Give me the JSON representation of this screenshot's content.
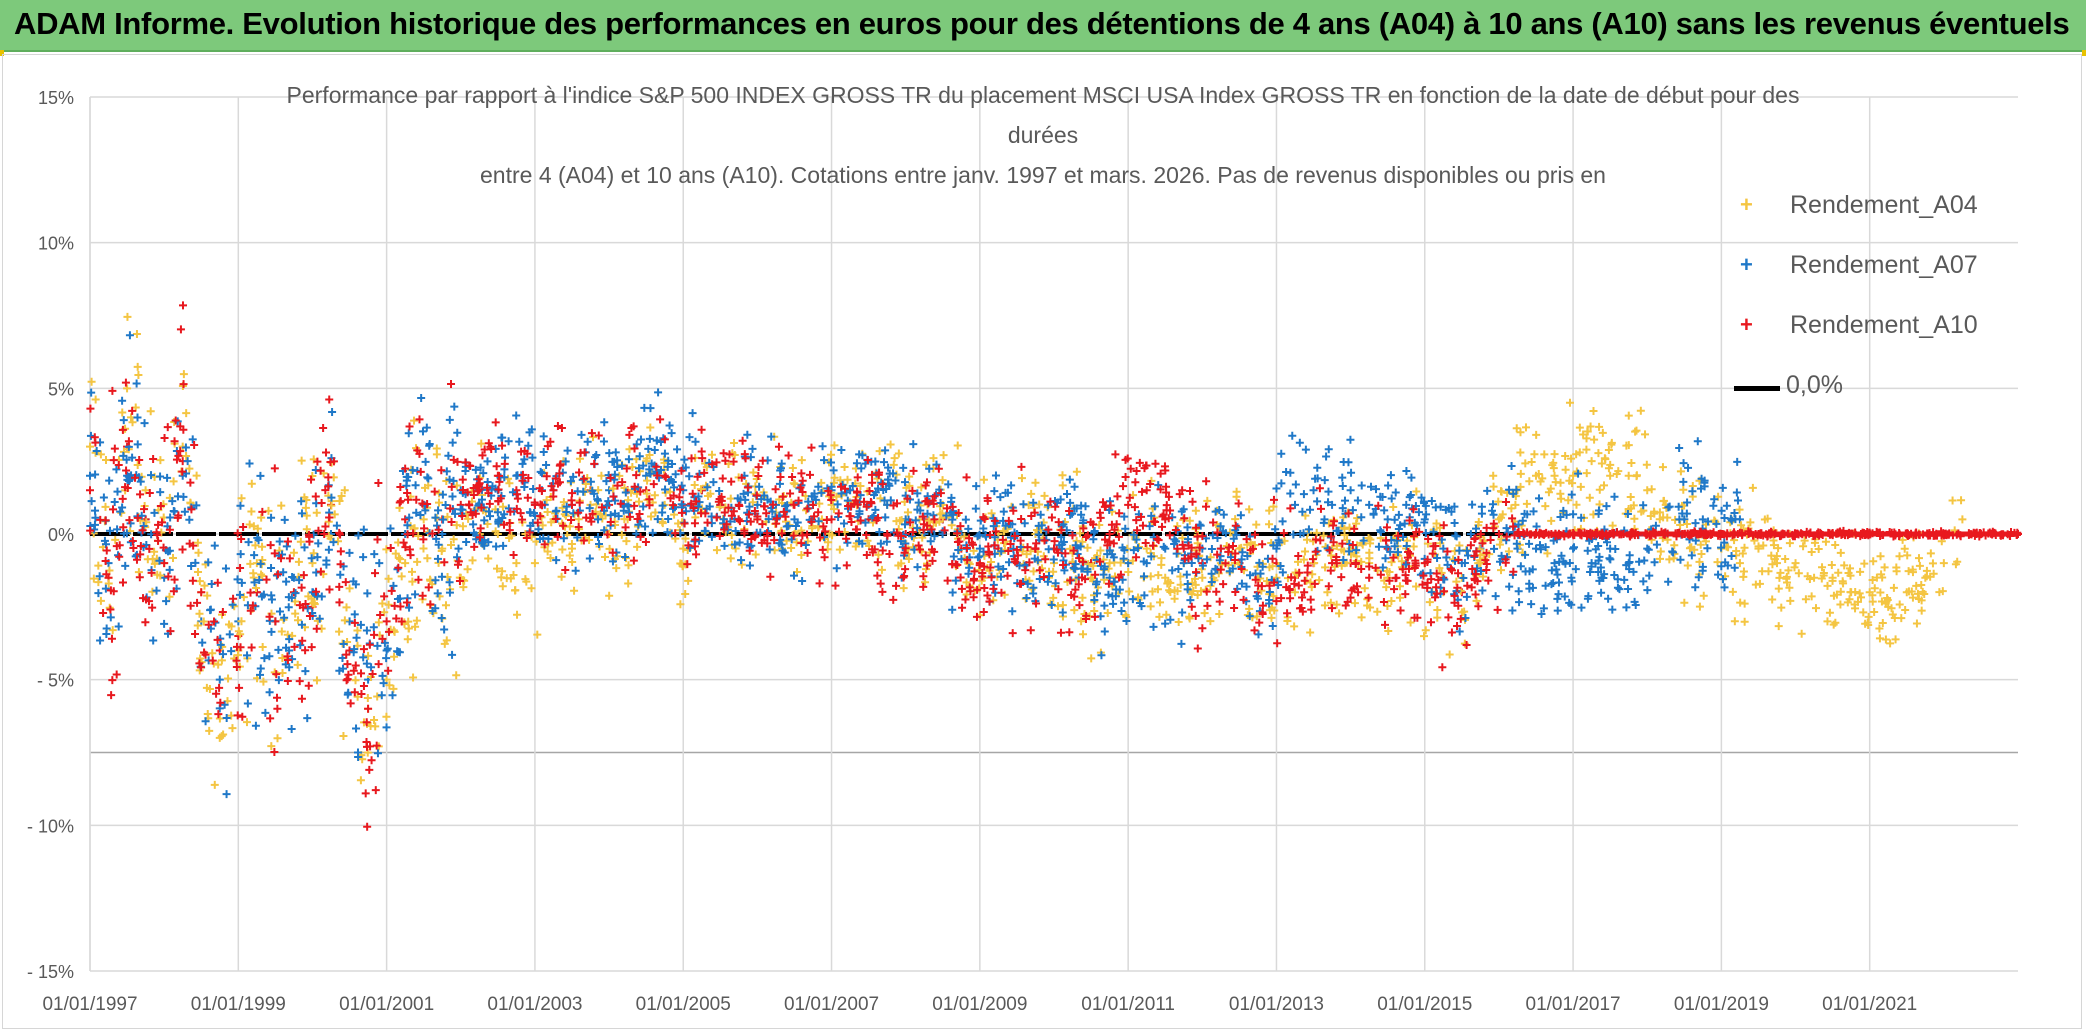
{
  "banner": {
    "title": "ADAM Informe. Evolution historique des performances en euros pour des détentions de 4 ans (A04) à 10 ans (A10) sans les revenus éventuels"
  },
  "colors": {
    "banner_bg": "#7dc97b",
    "series_a04": "#f4c542",
    "series_a07": "#1f78c8",
    "series_a10": "#e8181e",
    "zero_line": "#000000",
    "grid": "#d9d9d9",
    "text": "#595959"
  },
  "chart_data": {
    "type": "scatter",
    "title_lines": [
      "Performance par rapport à l'indice S&P 500 INDEX GROSS TR  du placement MSCI USA Index GROSS TR en fonction de la date de début pour des",
      "durées",
      "entre 4 (A04) et 10 ans (A10). Cotations entre janv. 1997 et mars. 2026. Pas de revenus disponibles ou pris en"
    ],
    "xlabel": "",
    "ylabel": "",
    "x_unit": "year",
    "xlim": [
      1997.0,
      2023.0
    ],
    "ylim": [
      -15,
      15
    ],
    "y_ticks": [
      15,
      10,
      5,
      0,
      -5,
      -10,
      -15
    ],
    "y_tick_labels": [
      "15%",
      "10%",
      "5%",
      "0%",
      "- 5%",
      "- 10%",
      "- 15%"
    ],
    "x_ticks": [
      1997,
      1999,
      2001,
      2003,
      2005,
      2007,
      2009,
      2011,
      2013,
      2015,
      2017,
      2019,
      2021
    ],
    "x_tick_labels": [
      "01/01/1997",
      "01/01/1999",
      "01/01/2001",
      "01/01/2003",
      "01/01/2005",
      "01/01/2007",
      "01/01/2009",
      "01/01/2011",
      "01/01/2013",
      "01/01/2015",
      "01/01/2017",
      "01/01/2019",
      "01/01/2021"
    ],
    "grid": true,
    "legend_position": "top-right",
    "marker": "+",
    "reference_line": {
      "name": "0,0%",
      "y": 0
    },
    "series": [
      {
        "name": "Rendement_A04",
        "x_start": 1997.0,
        "x_end": 2022.25,
        "points": [
          [
            1997.0,
            3.0
          ],
          [
            1997.25,
            -1.5
          ],
          [
            1997.5,
            5.0
          ],
          [
            1997.75,
            1.5
          ],
          [
            1998.0,
            -1.0
          ],
          [
            1998.25,
            3.0
          ],
          [
            1998.5,
            -2.0
          ],
          [
            1998.75,
            -7.0
          ],
          [
            1999.0,
            -4.0
          ],
          [
            1999.25,
            -1.0
          ],
          [
            1999.5,
            -3.0
          ],
          [
            1999.75,
            -2.0
          ],
          [
            2000.0,
            -1.0
          ],
          [
            2000.25,
            1.0
          ],
          [
            2000.5,
            -4.0
          ],
          [
            2000.75,
            -6.0
          ],
          [
            2001.0,
            -5.0
          ],
          [
            2001.25,
            -1.0
          ],
          [
            2001.5,
            0.5
          ],
          [
            2001.75,
            -0.5
          ],
          [
            2002.0,
            -1.5
          ],
          [
            2002.25,
            1.0
          ],
          [
            2002.5,
            0.0
          ],
          [
            2002.75,
            -1.0
          ],
          [
            2003.0,
            -1.0
          ],
          [
            2003.25,
            0.5
          ],
          [
            2003.5,
            -0.5
          ],
          [
            2003.75,
            1.0
          ],
          [
            2004.0,
            0.0
          ],
          [
            2004.25,
            0.5
          ],
          [
            2004.5,
            2.5
          ],
          [
            2004.75,
            1.0
          ],
          [
            2005.0,
            -0.5
          ],
          [
            2005.25,
            1.5
          ],
          [
            2005.5,
            1.0
          ],
          [
            2005.75,
            0.5
          ],
          [
            2006.0,
            0.5
          ],
          [
            2006.25,
            1.0
          ],
          [
            2006.5,
            0.0
          ],
          [
            2006.75,
            1.0
          ],
          [
            2007.0,
            1.0
          ],
          [
            2007.25,
            1.5
          ],
          [
            2007.5,
            0.5
          ],
          [
            2007.75,
            1.0
          ],
          [
            2008.0,
            0.5
          ],
          [
            2008.25,
            0.0
          ],
          [
            2008.5,
            1.0
          ],
          [
            2008.75,
            0.0
          ],
          [
            2009.0,
            -1.0
          ],
          [
            2009.25,
            0.0
          ],
          [
            2009.5,
            -1.0
          ],
          [
            2009.75,
            0.0
          ],
          [
            2010.0,
            -1.0
          ],
          [
            2010.25,
            -0.5
          ],
          [
            2010.5,
            -1.5
          ],
          [
            2010.75,
            -1.0
          ],
          [
            2011.0,
            -1.0
          ],
          [
            2011.25,
            -0.5
          ],
          [
            2011.5,
            -1.5
          ],
          [
            2011.75,
            -1.0
          ],
          [
            2012.0,
            -1.5
          ],
          [
            2012.25,
            -1.0
          ],
          [
            2012.5,
            -0.5
          ],
          [
            2012.75,
            -1.5
          ],
          [
            2013.0,
            -1.5
          ],
          [
            2013.25,
            -2.0
          ],
          [
            2013.5,
            -1.0
          ],
          [
            2013.75,
            -0.5
          ],
          [
            2014.0,
            -0.5
          ],
          [
            2014.25,
            -1.0
          ],
          [
            2014.5,
            -1.5
          ],
          [
            2014.75,
            -1.0
          ],
          [
            2015.0,
            -1.0
          ],
          [
            2015.25,
            -2.0
          ],
          [
            2015.5,
            -1.5
          ],
          [
            2015.75,
            -1.0
          ],
          [
            2016.0,
            0.5
          ],
          [
            2016.25,
            1.5
          ],
          [
            2016.5,
            2.0
          ],
          [
            2016.75,
            2.0
          ],
          [
            2017.0,
            2.0
          ],
          [
            2017.25,
            2.5
          ],
          [
            2017.5,
            2.0
          ],
          [
            2017.75,
            2.0
          ],
          [
            2018.0,
            1.5
          ],
          [
            2018.25,
            1.0
          ],
          [
            2018.5,
            0.5
          ],
          [
            2018.75,
            0.0
          ],
          [
            2019.0,
            -0.5
          ],
          [
            2019.25,
            -1.0
          ],
          [
            2019.5,
            -0.5
          ],
          [
            2019.75,
            -1.0
          ],
          [
            2020.0,
            -1.0
          ],
          [
            2020.25,
            -1.5
          ],
          [
            2020.5,
            -1.5
          ],
          [
            2020.75,
            -2.0
          ],
          [
            2021.0,
            -2.0
          ],
          [
            2021.25,
            -2.5
          ],
          [
            2021.5,
            -2.0
          ],
          [
            2021.75,
            -1.5
          ],
          [
            2022.0,
            -1.0
          ],
          [
            2022.25,
            0.5
          ]
        ]
      },
      {
        "name": "Rendement_A07",
        "x_start": 1997.0,
        "x_end": 2019.25,
        "points": [
          [
            1997.0,
            2.0
          ],
          [
            1997.25,
            -1.0
          ],
          [
            1997.5,
            2.0
          ],
          [
            1997.75,
            0.5
          ],
          [
            1998.0,
            -1.5
          ],
          [
            1998.25,
            2.0
          ],
          [
            1998.5,
            -3.0
          ],
          [
            1998.75,
            -5.0
          ],
          [
            1999.0,
            -3.0
          ],
          [
            1999.25,
            -2.0
          ],
          [
            1999.5,
            -3.0
          ],
          [
            1999.75,
            -1.5
          ],
          [
            2000.0,
            -2.0
          ],
          [
            2000.25,
            0.0
          ],
          [
            2000.5,
            -3.0
          ],
          [
            2000.75,
            -5.0
          ],
          [
            2001.0,
            -4.0
          ],
          [
            2001.25,
            0.0
          ],
          [
            2001.5,
            1.0
          ],
          [
            2001.75,
            0.0
          ],
          [
            2002.0,
            1.5
          ],
          [
            2002.25,
            1.0
          ],
          [
            2002.5,
            1.5
          ],
          [
            2002.75,
            2.0
          ],
          [
            2003.0,
            1.0
          ],
          [
            2003.25,
            1.5
          ],
          [
            2003.5,
            1.0
          ],
          [
            2003.75,
            1.5
          ],
          [
            2004.0,
            1.5
          ],
          [
            2004.25,
            1.0
          ],
          [
            2004.5,
            2.0
          ],
          [
            2004.75,
            2.0
          ],
          [
            2005.0,
            1.5
          ],
          [
            2005.25,
            1.5
          ],
          [
            2005.5,
            1.0
          ],
          [
            2005.75,
            1.0
          ],
          [
            2006.0,
            1.0
          ],
          [
            2006.25,
            1.0
          ],
          [
            2006.5,
            0.5
          ],
          [
            2006.75,
            1.0
          ],
          [
            2007.0,
            1.5
          ],
          [
            2007.25,
            1.5
          ],
          [
            2007.5,
            1.0
          ],
          [
            2007.75,
            1.0
          ],
          [
            2008.0,
            0.5
          ],
          [
            2008.25,
            0.0
          ],
          [
            2008.5,
            0.5
          ],
          [
            2008.75,
            0.0
          ],
          [
            2009.0,
            -0.5
          ],
          [
            2009.25,
            -0.5
          ],
          [
            2009.5,
            0.0
          ],
          [
            2009.75,
            -0.5
          ],
          [
            2010.0,
            -0.5
          ],
          [
            2010.25,
            0.0
          ],
          [
            2010.5,
            -1.0
          ],
          [
            2010.75,
            -1.5
          ],
          [
            2011.0,
            -1.0
          ],
          [
            2011.25,
            -1.0
          ],
          [
            2011.5,
            -0.5
          ],
          [
            2011.75,
            -1.0
          ],
          [
            2012.0,
            -0.5
          ],
          [
            2012.25,
            -0.5
          ],
          [
            2012.5,
            -1.0
          ],
          [
            2012.75,
            -2.0
          ],
          [
            2013.0,
            -0.5
          ],
          [
            2013.25,
            1.0
          ],
          [
            2013.5,
            1.5
          ],
          [
            2013.75,
            1.0
          ],
          [
            2014.0,
            1.5
          ],
          [
            2014.25,
            1.0
          ],
          [
            2014.5,
            0.5
          ],
          [
            2014.75,
            1.0
          ],
          [
            2015.0,
            0.5
          ],
          [
            2015.25,
            -0.5
          ],
          [
            2015.5,
            -1.0
          ],
          [
            2015.75,
            -0.5
          ],
          [
            2016.0,
            0.0
          ],
          [
            2016.25,
            -0.5
          ],
          [
            2016.5,
            -0.5
          ],
          [
            2016.75,
            -1.0
          ],
          [
            2017.0,
            -0.5
          ],
          [
            2017.25,
            -1.0
          ],
          [
            2017.5,
            -0.5
          ],
          [
            2017.75,
            -1.0
          ],
          [
            2018.0,
            -0.5
          ],
          [
            2018.25,
            0.0
          ],
          [
            2018.5,
            0.5
          ],
          [
            2018.75,
            0.5
          ],
          [
            2019.0,
            0.0
          ],
          [
            2019.25,
            0.5
          ]
        ]
      },
      {
        "name": "Rendement_A10",
        "x_start": 1997.0,
        "x_end": 2023.0,
        "points": [
          [
            1997.0,
            1.5
          ],
          [
            1997.25,
            -1.5
          ],
          [
            1997.5,
            3.0
          ],
          [
            1997.75,
            0.5
          ],
          [
            1998.0,
            -1.0
          ],
          [
            1998.25,
            2.5
          ],
          [
            1998.5,
            -2.0
          ],
          [
            1998.75,
            -4.0
          ],
          [
            1999.0,
            -3.5
          ],
          [
            1999.25,
            -2.0
          ],
          [
            1999.5,
            -3.0
          ],
          [
            1999.75,
            -2.0
          ],
          [
            2000.0,
            -2.5
          ],
          [
            2000.25,
            1.0
          ],
          [
            2000.5,
            -4.0
          ],
          [
            2000.75,
            -6.0
          ],
          [
            2001.0,
            -3.0
          ],
          [
            2001.25,
            0.5
          ],
          [
            2001.5,
            1.0
          ],
          [
            2001.75,
            0.5
          ],
          [
            2002.0,
            1.0
          ],
          [
            2002.25,
            1.5
          ],
          [
            2002.5,
            2.0
          ],
          [
            2002.75,
            1.5
          ],
          [
            2003.0,
            1.0
          ],
          [
            2003.25,
            1.5
          ],
          [
            2003.5,
            1.0
          ],
          [
            2003.75,
            1.5
          ],
          [
            2004.0,
            1.0
          ],
          [
            2004.25,
            1.5
          ],
          [
            2004.5,
            1.5
          ],
          [
            2004.75,
            2.0
          ],
          [
            2005.0,
            1.0
          ],
          [
            2005.25,
            1.5
          ],
          [
            2005.5,
            1.0
          ],
          [
            2005.75,
            1.0
          ],
          [
            2006.0,
            0.5
          ],
          [
            2006.25,
            0.5
          ],
          [
            2006.5,
            1.0
          ],
          [
            2006.75,
            1.0
          ],
          [
            2007.0,
            0.5
          ],
          [
            2007.25,
            1.0
          ],
          [
            2007.5,
            0.5
          ],
          [
            2007.75,
            0.0
          ],
          [
            2008.0,
            0.0
          ],
          [
            2008.25,
            0.5
          ],
          [
            2008.5,
            0.5
          ],
          [
            2008.75,
            -0.5
          ],
          [
            2009.0,
            -1.0
          ],
          [
            2009.25,
            -0.5
          ],
          [
            2009.5,
            -1.0
          ],
          [
            2009.75,
            -0.5
          ],
          [
            2010.0,
            -0.5
          ],
          [
            2010.25,
            -1.0
          ],
          [
            2010.5,
            -1.0
          ],
          [
            2010.75,
            0.0
          ],
          [
            2011.0,
            1.0
          ],
          [
            2011.25,
            1.5
          ],
          [
            2011.5,
            0.5
          ],
          [
            2011.75,
            -0.5
          ],
          [
            2012.0,
            -1.0
          ],
          [
            2012.25,
            -0.5
          ],
          [
            2012.5,
            -1.0
          ],
          [
            2012.75,
            -2.0
          ],
          [
            2013.0,
            -1.0
          ],
          [
            2013.25,
            -1.5
          ],
          [
            2013.5,
            -1.0
          ],
          [
            2013.75,
            -1.0
          ],
          [
            2014.0,
            -1.0
          ],
          [
            2014.25,
            -1.5
          ],
          [
            2014.5,
            -0.5
          ],
          [
            2014.75,
            -1.0
          ],
          [
            2015.0,
            -1.0
          ],
          [
            2015.25,
            -1.5
          ],
          [
            2015.5,
            -2.0
          ],
          [
            2015.75,
            -1.0
          ],
          [
            2016.0,
            0.0
          ],
          [
            2016.5,
            0.0
          ],
          [
            2017.0,
            0.0
          ],
          [
            2017.5,
            0.0
          ],
          [
            2018.0,
            0.0
          ],
          [
            2018.5,
            0.0
          ],
          [
            2019.0,
            0.0
          ],
          [
            2019.5,
            0.0
          ],
          [
            2020.0,
            0.0
          ],
          [
            2020.5,
            0.0
          ],
          [
            2021.0,
            0.0
          ],
          [
            2021.5,
            0.0
          ],
          [
            2022.0,
            0.0
          ],
          [
            2022.5,
            0.0
          ],
          [
            2023.0,
            0.0
          ]
        ]
      }
    ]
  },
  "legend": {
    "items": [
      {
        "label": "Rendement_A04",
        "marker": "+"
      },
      {
        "label": "Rendement_A07",
        "marker": "+"
      },
      {
        "label": "Rendement_A10",
        "marker": "+"
      },
      {
        "label": "0,0%",
        "marker": "line"
      }
    ]
  }
}
